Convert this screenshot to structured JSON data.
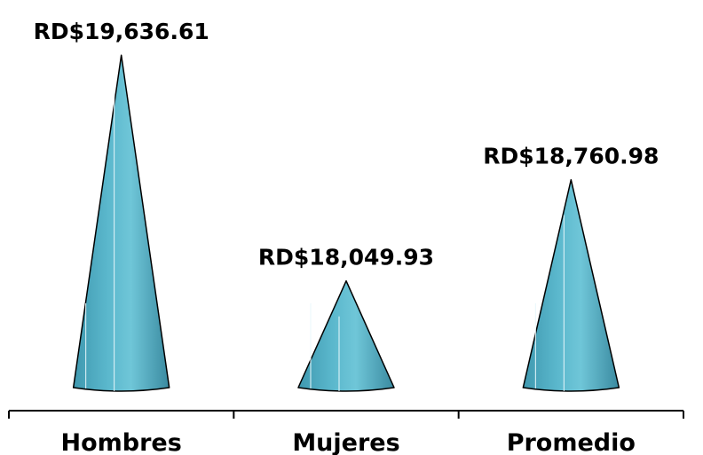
{
  "chart_data": {
    "type": "bar",
    "bar_shape": "cone",
    "categories": [
      "Hombres",
      "Mujeres",
      "Promedio"
    ],
    "values": [
      19636.61,
      18049.93,
      18760.98
    ],
    "data_labels": [
      "RD$19,636.61",
      "RD$18,049.93",
      "RD$18,760.98"
    ],
    "title": "",
    "xlabel": "",
    "ylabel": "",
    "ylim": [
      17300,
      19900
    ],
    "grid": false,
    "legend": "none",
    "colors": {
      "fill_light": "#6cc4d6",
      "fill_mid": "#4ba9c0",
      "fill_dark": "#3a8aa0",
      "outline": "#000000",
      "axis": "#000000"
    }
  }
}
